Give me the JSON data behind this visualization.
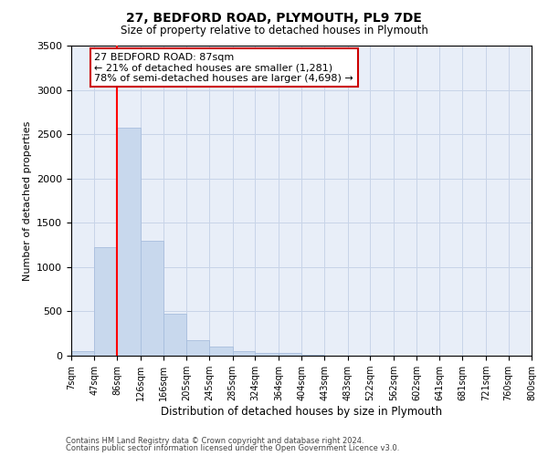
{
  "title": "27, BEDFORD ROAD, PLYMOUTH, PL9 7DE",
  "subtitle": "Size of property relative to detached houses in Plymouth",
  "xlabel": "Distribution of detached houses by size in Plymouth",
  "ylabel": "Number of detached properties",
  "bar_color": "#c8d8ed",
  "bar_edgecolor": "#a8bedd",
  "redline_x": 86,
  "annotation_title": "27 BEDFORD ROAD: 87sqm",
  "annotation_line1": "← 21% of detached houses are smaller (1,281)",
  "annotation_line2": "78% of semi-detached houses are larger (4,698) →",
  "annotation_box_color": "#ffffff",
  "annotation_box_edgecolor": "#cc0000",
  "footnote1": "Contains HM Land Registry data © Crown copyright and database right 2024.",
  "footnote2": "Contains public sector information licensed under the Open Government Licence v3.0.",
  "bin_edges": [
    7,
    47,
    86,
    126,
    166,
    205,
    245,
    285,
    324,
    364,
    404,
    443,
    483,
    522,
    562,
    602,
    641,
    681,
    721,
    760,
    800
  ],
  "bin_labels": [
    "7sqm",
    "47sqm",
    "86sqm",
    "126sqm",
    "166sqm",
    "205sqm",
    "245sqm",
    "285sqm",
    "324sqm",
    "364sqm",
    "404sqm",
    "443sqm",
    "483sqm",
    "522sqm",
    "562sqm",
    "602sqm",
    "641sqm",
    "681sqm",
    "721sqm",
    "760sqm",
    "800sqm"
  ],
  "bar_heights": [
    50,
    1220,
    2570,
    1300,
    470,
    180,
    100,
    55,
    35,
    30,
    15,
    5,
    2,
    0,
    0,
    0,
    0,
    0,
    0,
    0
  ],
  "ylim": [
    0,
    3500
  ],
  "yticks": [
    0,
    500,
    1000,
    1500,
    2000,
    2500,
    3000,
    3500
  ],
  "background_color": "#ffffff",
  "axes_bg_color": "#e8eef8",
  "grid_color": "#c8d4e8"
}
